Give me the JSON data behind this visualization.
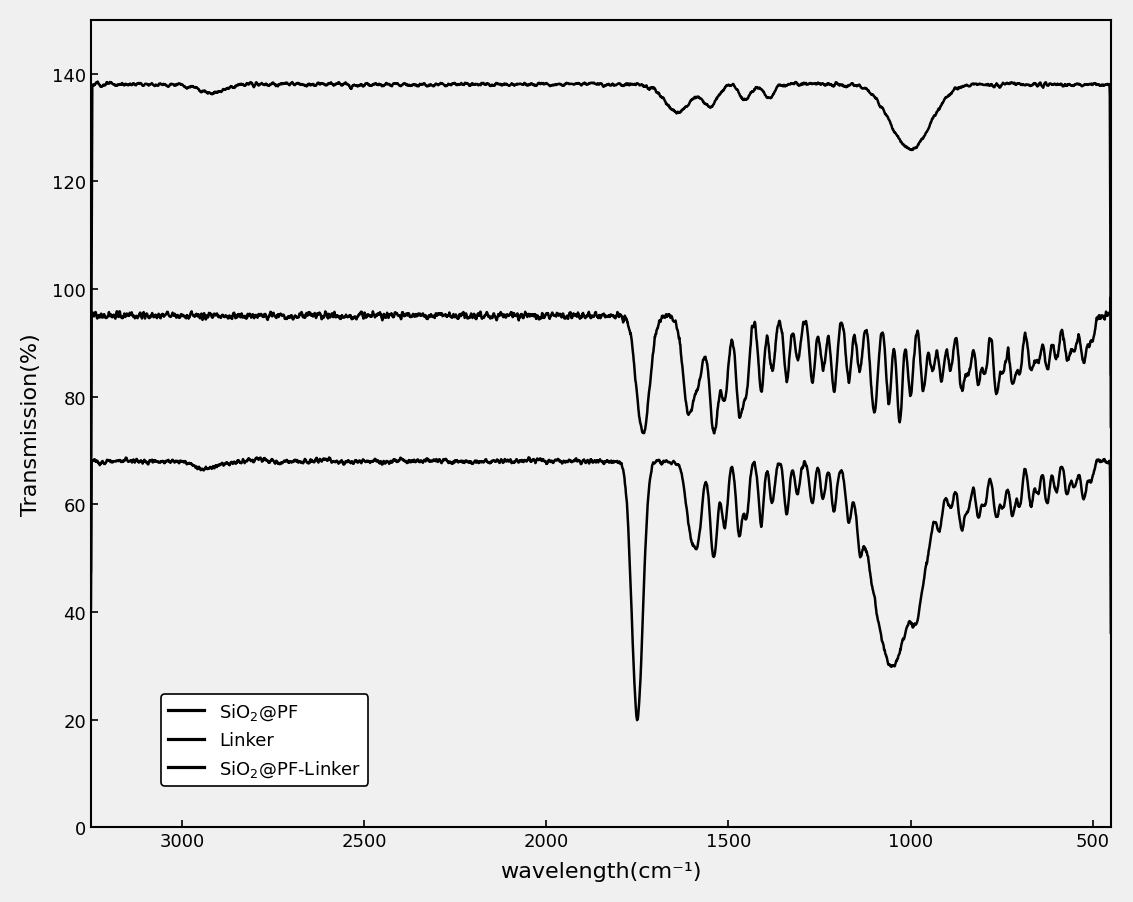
{
  "title": "",
  "xlabel": "wavelength(cm⁻¹)",
  "ylabel": "Transmission(%)",
  "xlim": [
    3250,
    450
  ],
  "ylim": [
    0,
    150
  ],
  "yticks": [
    0,
    20,
    40,
    60,
    80,
    100,
    120,
    140
  ],
  "xticks": [
    3000,
    2500,
    2000,
    1500,
    1000,
    500
  ],
  "legend": [
    "SiO₂@PF",
    "Linker",
    "SiO₂@PF-Linker"
  ],
  "line_color": "#000000",
  "background_color": "#f0f0f0",
  "linewidth": 1.8
}
